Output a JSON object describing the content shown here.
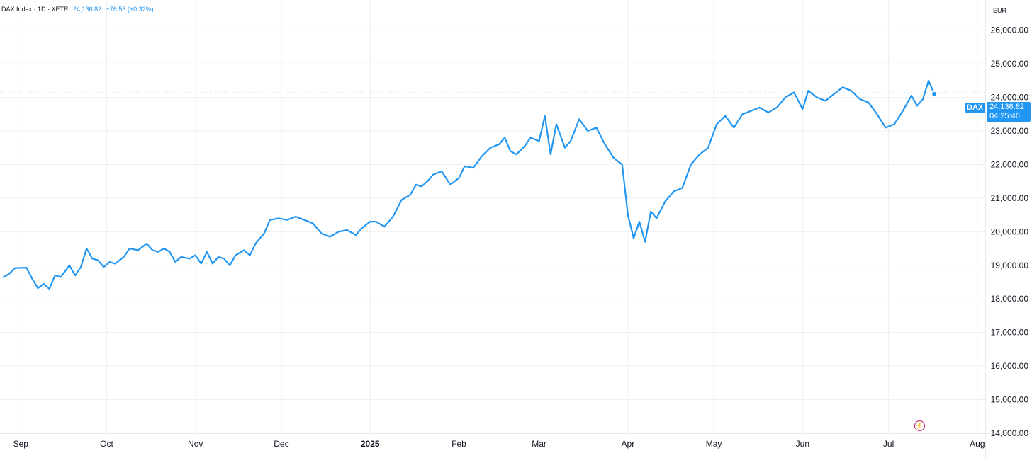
{
  "header": {
    "symbol": "DAX Index · 1D · XETR",
    "last": "24,136.82",
    "change": "+76.53 (+0.32%)"
  },
  "currency": "EUR",
  "price_tag": {
    "ticker": "DAX",
    "price": "24,136.82",
    "countdown": "04:25:46"
  },
  "colors": {
    "line": "#2196f3",
    "tag_bg": "#2196f3",
    "lightning_icon": "#c2185b"
  },
  "icons": {
    "lightning": "lightning-bolt-icon"
  },
  "chart_data": {
    "type": "line",
    "title": "",
    "xlabel": "",
    "ylabel": "",
    "ylim": [
      14000,
      26900
    ],
    "xlim": [
      "2024-08-26",
      "2025-08-05"
    ],
    "y_ticks": [
      "26,000.00",
      "25,000.00",
      "24,000.00",
      "23,000.00",
      "22,000.00",
      "21,000.00",
      "20,000.00",
      "19,000.00",
      "18,000.00",
      "17,000.00",
      "16,000.00",
      "15,000.00",
      "14,000.00"
    ],
    "x_ticks": [
      {
        "label": "Sep",
        "date": "2024-09-01"
      },
      {
        "label": "Oct",
        "date": "2024-10-01"
      },
      {
        "label": "Nov",
        "date": "2024-11-01"
      },
      {
        "label": "Dec",
        "date": "2024-12-01"
      },
      {
        "label": "2025",
        "date": "2025-01-01"
      },
      {
        "label": "Feb",
        "date": "2025-02-01"
      },
      {
        "label": "Mar",
        "date": "2025-03-01"
      },
      {
        "label": "Apr",
        "date": "2025-04-01"
      },
      {
        "label": "May",
        "date": "2025-05-01"
      },
      {
        "label": "Jun",
        "date": "2025-06-01"
      },
      {
        "label": "Jul",
        "date": "2025-07-01"
      },
      {
        "label": "Aug",
        "date": "2025-08-01"
      }
    ],
    "series": [
      {
        "x": [
          "2024-08-26",
          "2024-08-28",
          "2024-08-30",
          "2024-09-03",
          "2024-09-05",
          "2024-09-07",
          "2024-09-09",
          "2024-09-11",
          "2024-09-13",
          "2024-09-15",
          "2024-09-18",
          "2024-09-20",
          "2024-09-22",
          "2024-09-24",
          "2024-09-26",
          "2024-09-28",
          "2024-09-30",
          "2024-10-02",
          "2024-10-04",
          "2024-10-07",
          "2024-10-09",
          "2024-10-12",
          "2024-10-15",
          "2024-10-17",
          "2024-10-19",
          "2024-10-21",
          "2024-10-23",
          "2024-10-25",
          "2024-10-27",
          "2024-10-30",
          "2024-11-01",
          "2024-11-03",
          "2024-11-05",
          "2024-11-07",
          "2024-11-09",
          "2024-11-11",
          "2024-11-13",
          "2024-11-15",
          "2024-11-18",
          "2024-11-20",
          "2024-11-22",
          "2024-11-25",
          "2024-11-27",
          "2024-11-30",
          "2024-12-03",
          "2024-12-06",
          "2024-12-09",
          "2024-12-12",
          "2024-12-15",
          "2024-12-18",
          "2024-12-21",
          "2024-12-24",
          "2024-12-27",
          "2024-12-29",
          "2025-01-01",
          "2025-01-03",
          "2025-01-06",
          "2025-01-09",
          "2025-01-12",
          "2025-01-15",
          "2025-01-17",
          "2025-01-19",
          "2025-01-21",
          "2025-01-23",
          "2025-01-26",
          "2025-01-29",
          "2025-02-01",
          "2025-02-03",
          "2025-02-06",
          "2025-02-09",
          "2025-02-12",
          "2025-02-15",
          "2025-02-17",
          "2025-02-19",
          "2025-02-21",
          "2025-02-24",
          "2025-02-26",
          "2025-03-01",
          "2025-03-03",
          "2025-03-05",
          "2025-03-07",
          "2025-03-10",
          "2025-03-12",
          "2025-03-15",
          "2025-03-18",
          "2025-03-21",
          "2025-03-24",
          "2025-03-27",
          "2025-03-30",
          "2025-04-01",
          "2025-04-03",
          "2025-04-05",
          "2025-04-07",
          "2025-04-09",
          "2025-04-11",
          "2025-04-14",
          "2025-04-17",
          "2025-04-20",
          "2025-04-23",
          "2025-04-26",
          "2025-04-29",
          "2025-05-02",
          "2025-05-05",
          "2025-05-08",
          "2025-05-11",
          "2025-05-14",
          "2025-05-17",
          "2025-05-20",
          "2025-05-23",
          "2025-05-26",
          "2025-05-29",
          "2025-06-01",
          "2025-06-03",
          "2025-06-06",
          "2025-06-09",
          "2025-06-12",
          "2025-06-15",
          "2025-06-18",
          "2025-06-21",
          "2025-06-24",
          "2025-06-27",
          "2025-06-30",
          "2025-07-03",
          "2025-07-06",
          "2025-07-09",
          "2025-07-11",
          "2025-07-13",
          "2025-07-15",
          "2025-07-17"
        ],
        "y": [
          18650,
          18750,
          18920,
          18930,
          18600,
          18320,
          18450,
          18300,
          18700,
          18650,
          19000,
          18700,
          18950,
          19500,
          19200,
          19150,
          18950,
          19100,
          19050,
          19250,
          19500,
          19450,
          19650,
          19450,
          19400,
          19500,
          19400,
          19100,
          19250,
          19200,
          19300,
          19050,
          19400,
          19050,
          19250,
          19200,
          19000,
          19300,
          19450,
          19300,
          19650,
          19950,
          20350,
          20400,
          20350,
          20450,
          20350,
          20250,
          19950,
          19850,
          20000,
          20050,
          19900,
          20100,
          20300,
          20300,
          20150,
          20450,
          20950,
          21100,
          21400,
          21350,
          21500,
          21700,
          21800,
          21400,
          21600,
          21950,
          21900,
          22250,
          22500,
          22600,
          22800,
          22400,
          22300,
          22550,
          22800,
          22700,
          23450,
          22300,
          23200,
          22500,
          22700,
          23350,
          23000,
          23100,
          22600,
          22200,
          22000,
          20500,
          19800,
          20300,
          19700,
          20600,
          20400,
          20900,
          21200,
          21300,
          22000,
          22300,
          22500,
          23200,
          23450,
          23100,
          23500,
          23600,
          23700,
          23550,
          23700,
          24000,
          24150,
          23650,
          24200,
          24000,
          23900,
          24100,
          24300,
          24200,
          23950,
          23850,
          23500,
          23100,
          23200,
          23600,
          24050,
          23750,
          23950,
          24500,
          24100
        ]
      }
    ],
    "last_value": 24136.82,
    "current_price_line": 24136.82,
    "grid": true,
    "y_axis_position": "right"
  }
}
